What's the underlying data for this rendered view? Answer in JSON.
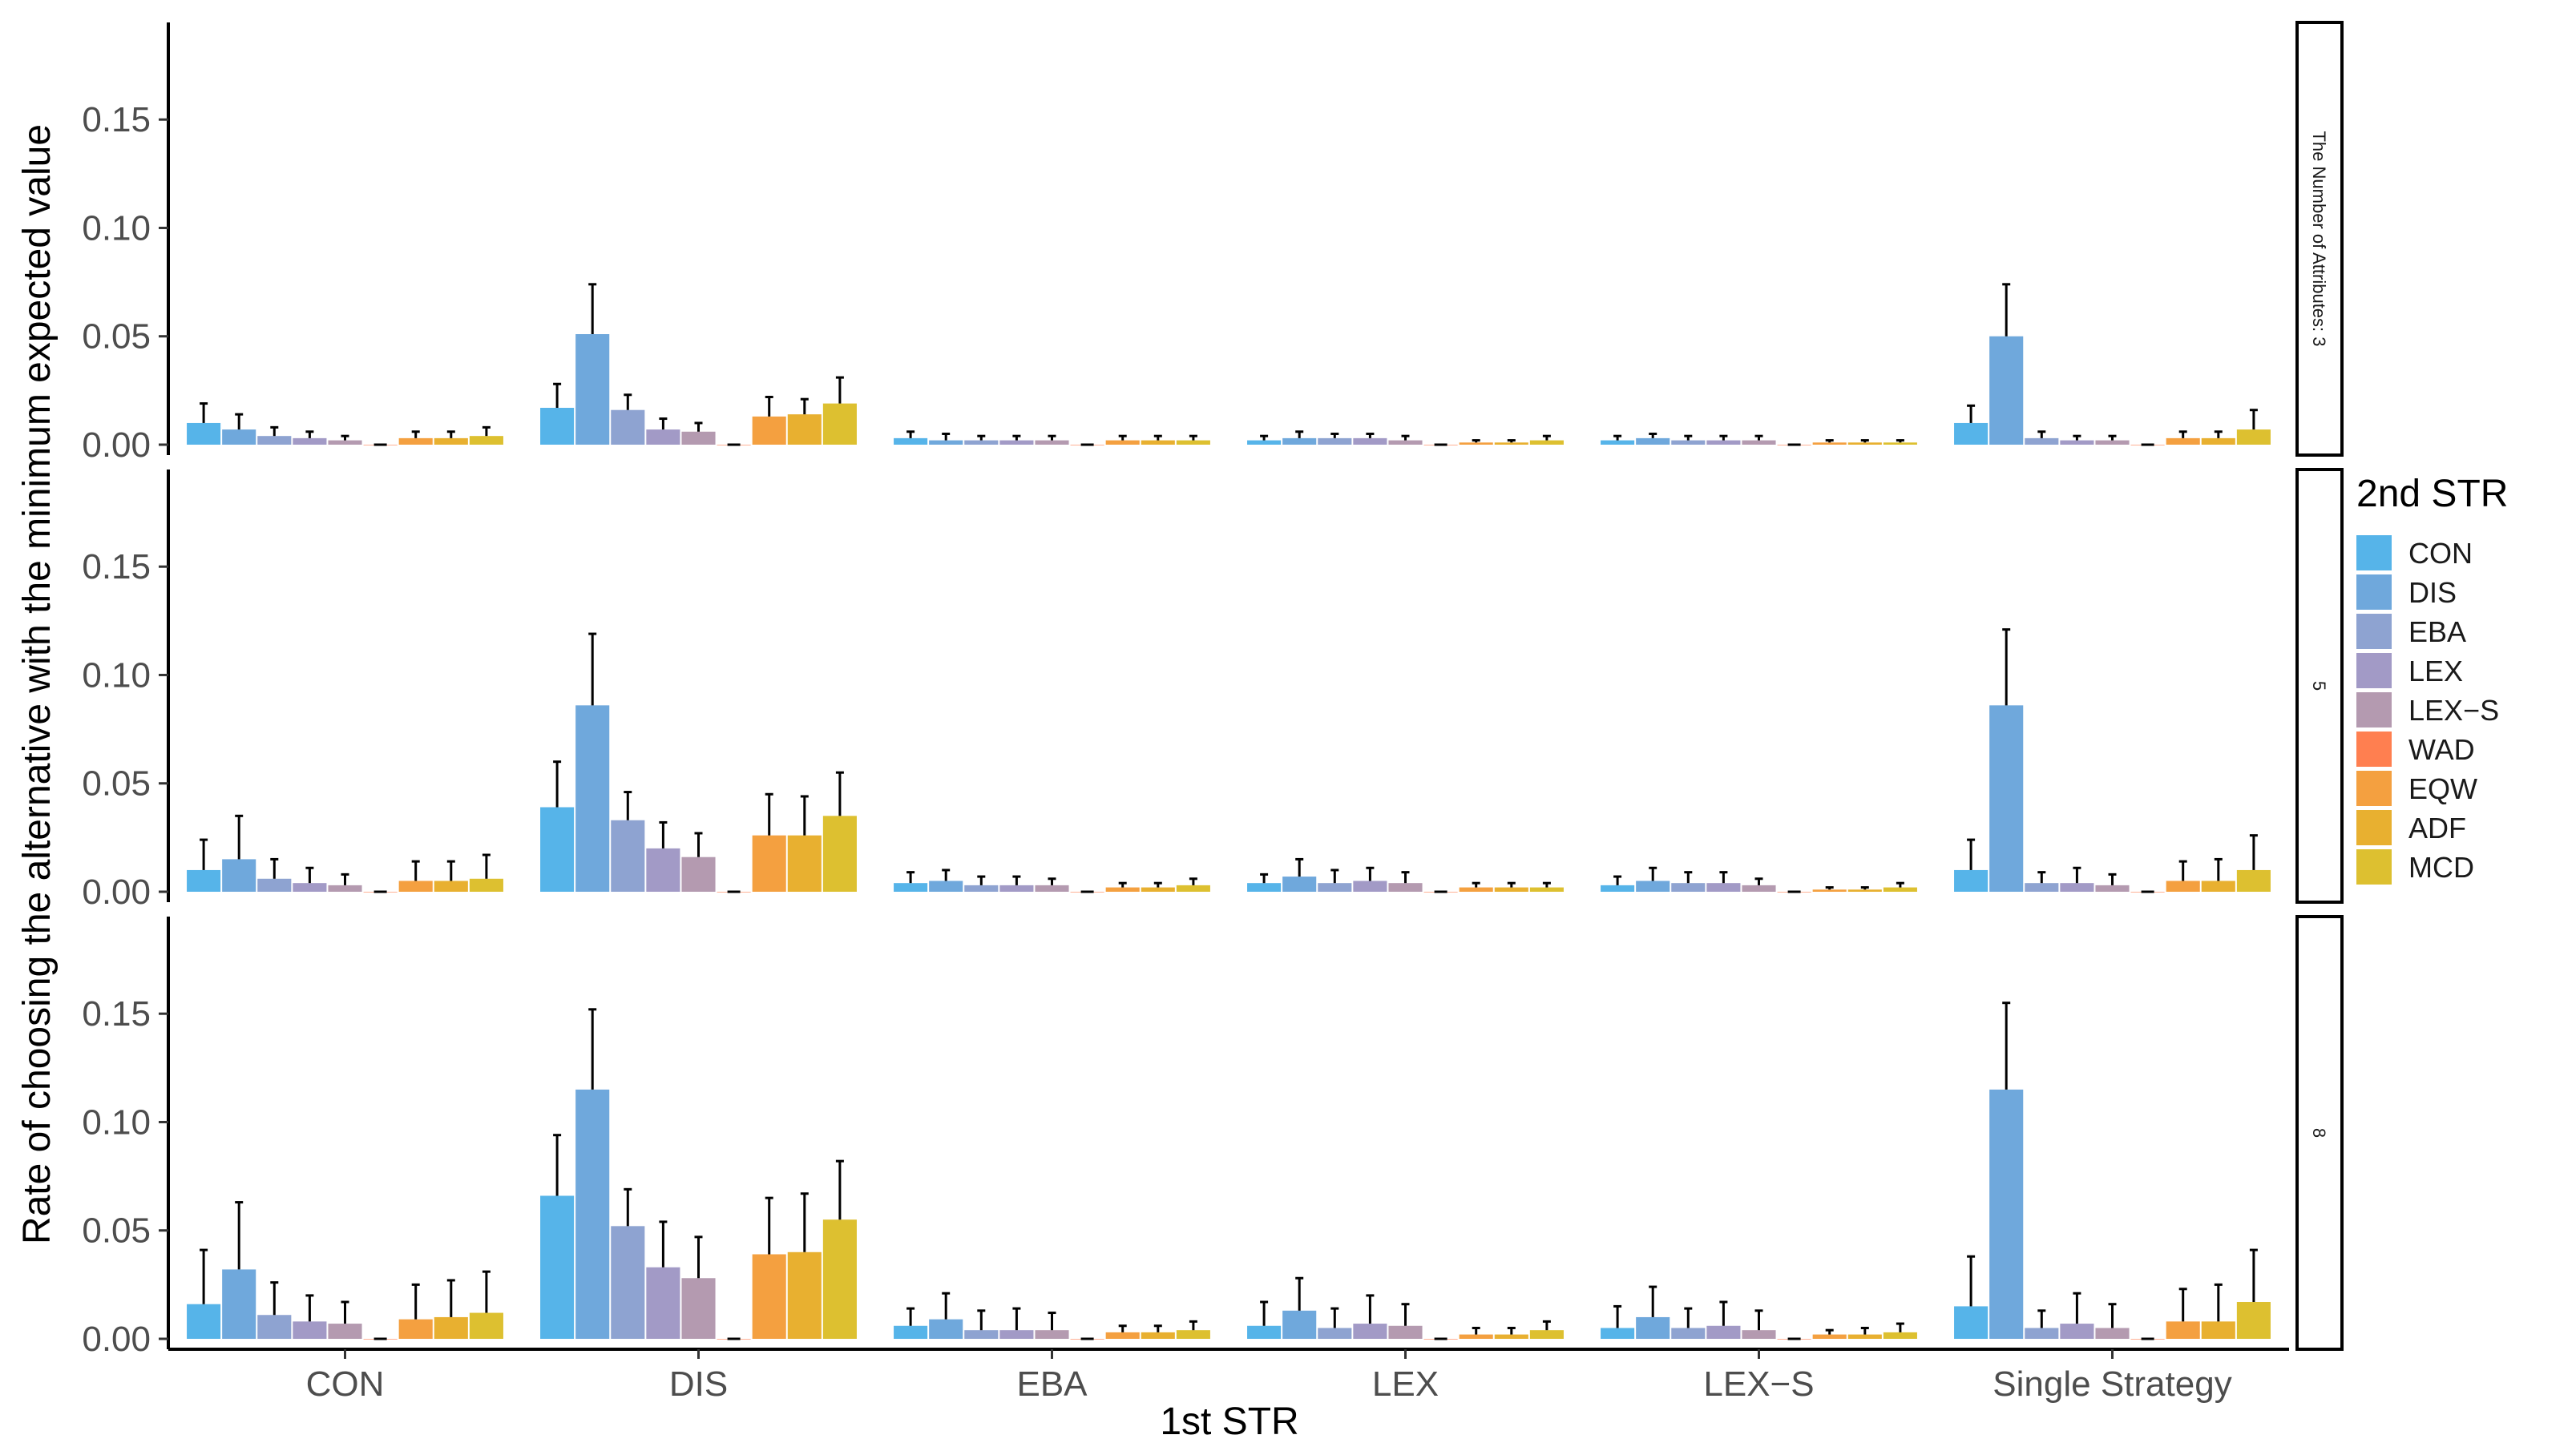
{
  "chart_data": {
    "type": "bar",
    "title": "",
    "xlabel": "1st STR",
    "ylabel": "Rate of choosing the alternative with the minimum expected value",
    "ylim": [
      0,
      0.19
    ],
    "yticks": [
      "0.00",
      "0.05",
      "0.10",
      "0.15"
    ],
    "ytick_values": [
      0,
      0.05,
      0.1,
      0.15
    ],
    "categories": [
      "CON",
      "DIS",
      "EBA",
      "LEX",
      "LEX−S",
      "Single Strategy"
    ],
    "legend": {
      "title": "2nd STR",
      "position": "right",
      "items": [
        {
          "name": "CON",
          "color": "#56B4E9"
        },
        {
          "name": "DIS",
          "color": "#6FA8DC"
        },
        {
          "name": "EBA",
          "color": "#8EA3D1"
        },
        {
          "name": "LEX",
          "color": "#A29AC6"
        },
        {
          "name": "LEX−S",
          "color": "#B49AB0"
        },
        {
          "name": "WAD",
          "color": "#FF7F50"
        },
        {
          "name": "EQW",
          "color": "#F4A040"
        },
        {
          "name": "ADF",
          "color": "#E8B030"
        },
        {
          "name": "MCD",
          "color": "#DDC030"
        }
      ]
    },
    "panels": [
      {
        "label": "The Number of Attributes: 3",
        "values": [
          [
            0.01,
            0.007,
            0.004,
            0.003,
            0.002,
            0.0,
            0.003,
            0.003,
            0.004
          ],
          [
            0.017,
            0.051,
            0.016,
            0.007,
            0.006,
            0.0,
            0.013,
            0.014,
            0.019
          ],
          [
            0.003,
            0.002,
            0.002,
            0.002,
            0.002,
            0.0,
            0.002,
            0.002,
            0.002
          ],
          [
            0.002,
            0.003,
            0.003,
            0.003,
            0.002,
            0.0,
            0.001,
            0.001,
            0.002
          ],
          [
            0.002,
            0.003,
            0.002,
            0.002,
            0.002,
            0.0,
            0.001,
            0.001,
            0.001
          ],
          [
            0.01,
            0.05,
            0.003,
            0.002,
            0.002,
            0.0,
            0.003,
            0.003,
            0.007
          ]
        ],
        "errors": [
          [
            0.009,
            0.007,
            0.004,
            0.003,
            0.002,
            0.0,
            0.003,
            0.003,
            0.004
          ],
          [
            0.011,
            0.023,
            0.007,
            0.005,
            0.004,
            0.0,
            0.009,
            0.007,
            0.012
          ],
          [
            0.003,
            0.003,
            0.002,
            0.002,
            0.002,
            0.0,
            0.002,
            0.002,
            0.002
          ],
          [
            0.002,
            0.003,
            0.002,
            0.002,
            0.002,
            0.0,
            0.001,
            0.001,
            0.002
          ],
          [
            0.002,
            0.002,
            0.002,
            0.002,
            0.002,
            0.0,
            0.001,
            0.001,
            0.001
          ],
          [
            0.008,
            0.024,
            0.003,
            0.002,
            0.002,
            0.0,
            0.003,
            0.003,
            0.009
          ]
        ]
      },
      {
        "label": "5",
        "values": [
          [
            0.01,
            0.015,
            0.006,
            0.004,
            0.003,
            0.0,
            0.005,
            0.005,
            0.006
          ],
          [
            0.039,
            0.086,
            0.033,
            0.02,
            0.016,
            0.0,
            0.026,
            0.026,
            0.035
          ],
          [
            0.004,
            0.005,
            0.003,
            0.003,
            0.003,
            0.0,
            0.002,
            0.002,
            0.003
          ],
          [
            0.004,
            0.007,
            0.004,
            0.005,
            0.004,
            0.0,
            0.002,
            0.002,
            0.002
          ],
          [
            0.003,
            0.005,
            0.004,
            0.004,
            0.003,
            0.0,
            0.001,
            0.001,
            0.002
          ],
          [
            0.01,
            0.086,
            0.004,
            0.004,
            0.003,
            0.0,
            0.005,
            0.005,
            0.01
          ]
        ],
        "errors": [
          [
            0.014,
            0.02,
            0.009,
            0.007,
            0.005,
            0.0,
            0.009,
            0.009,
            0.011
          ],
          [
            0.021,
            0.033,
            0.013,
            0.012,
            0.011,
            0.0,
            0.019,
            0.018,
            0.02
          ],
          [
            0.005,
            0.005,
            0.004,
            0.004,
            0.003,
            0.0,
            0.002,
            0.002,
            0.003
          ],
          [
            0.004,
            0.008,
            0.006,
            0.006,
            0.005,
            0.0,
            0.002,
            0.002,
            0.002
          ],
          [
            0.004,
            0.006,
            0.005,
            0.005,
            0.003,
            0.0,
            0.001,
            0.001,
            0.002
          ],
          [
            0.014,
            0.035,
            0.005,
            0.007,
            0.005,
            0.0,
            0.009,
            0.01,
            0.016
          ]
        ]
      },
      {
        "label": "8",
        "values": [
          [
            0.016,
            0.032,
            0.011,
            0.008,
            0.007,
            0.0,
            0.009,
            0.01,
            0.012
          ],
          [
            0.066,
            0.115,
            0.052,
            0.033,
            0.028,
            0.0,
            0.039,
            0.04,
            0.055
          ],
          [
            0.006,
            0.009,
            0.004,
            0.004,
            0.004,
            0.0,
            0.003,
            0.003,
            0.004
          ],
          [
            0.006,
            0.013,
            0.005,
            0.007,
            0.006,
            0.0,
            0.002,
            0.002,
            0.004
          ],
          [
            0.005,
            0.01,
            0.005,
            0.006,
            0.004,
            0.0,
            0.002,
            0.002,
            0.003
          ],
          [
            0.015,
            0.115,
            0.005,
            0.007,
            0.005,
            0.0,
            0.008,
            0.008,
            0.017
          ]
        ],
        "errors": [
          [
            0.025,
            0.031,
            0.015,
            0.012,
            0.01,
            0.0,
            0.016,
            0.017,
            0.019
          ],
          [
            0.028,
            0.037,
            0.017,
            0.021,
            0.019,
            0.0,
            0.026,
            0.027,
            0.027
          ],
          [
            0.008,
            0.012,
            0.009,
            0.01,
            0.008,
            0.0,
            0.003,
            0.003,
            0.004
          ],
          [
            0.011,
            0.015,
            0.009,
            0.013,
            0.01,
            0.0,
            0.003,
            0.003,
            0.004
          ],
          [
            0.01,
            0.014,
            0.009,
            0.011,
            0.009,
            0.0,
            0.002,
            0.003,
            0.004
          ],
          [
            0.023,
            0.04,
            0.008,
            0.014,
            0.011,
            0.0,
            0.015,
            0.017,
            0.024
          ]
        ]
      }
    ]
  }
}
